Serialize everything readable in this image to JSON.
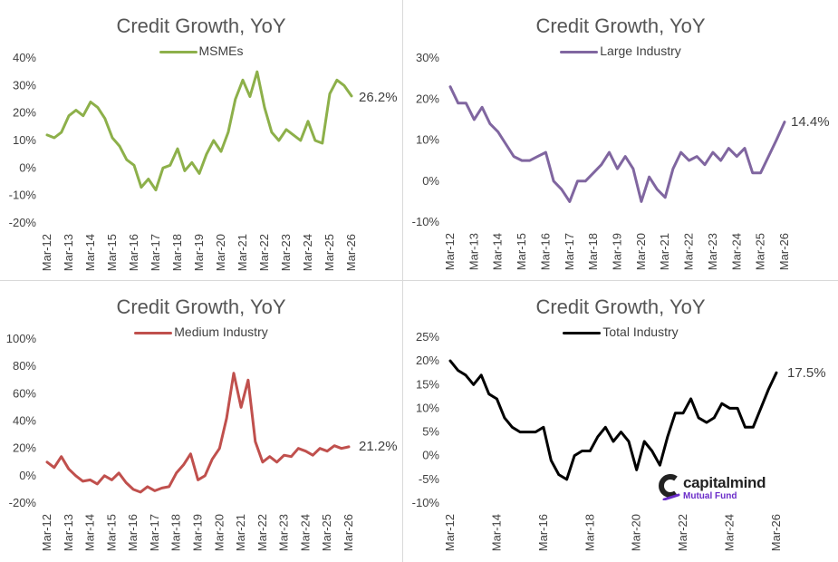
{
  "chart_data": [
    {
      "type": "line",
      "title": "Credit Growth, YoY",
      "series": [
        {
          "name": "MSMEs",
          "color": "#8db04a",
          "x": [
            2012.17,
            2012.5,
            2012.83,
            2013.17,
            2013.5,
            2013.83,
            2014.17,
            2014.5,
            2014.83,
            2015.17,
            2015.5,
            2015.83,
            2016.17,
            2016.5,
            2016.83,
            2017.17,
            2017.5,
            2017.83,
            2018.17,
            2018.5,
            2018.83,
            2019.17,
            2019.5,
            2019.83,
            2020.17,
            2020.5,
            2020.83,
            2021.17,
            2021.5,
            2021.83,
            2022.17,
            2022.5,
            2022.83,
            2023.17,
            2023.5,
            2023.83,
            2024.17,
            2024.5,
            2024.83,
            2025.17,
            2025.5,
            2025.83,
            2026.17
          ],
          "y": [
            12,
            11,
            13,
            19,
            21,
            19,
            24,
            22,
            18,
            11,
            8,
            3,
            1,
            -7,
            -4,
            -8,
            0,
            1,
            7,
            -1,
            2,
            -2,
            5,
            10,
            6,
            13,
            25,
            32,
            26,
            35,
            22,
            13,
            10,
            14,
            12,
            10,
            17,
            10,
            9,
            27,
            32,
            30,
            26.2
          ]
        }
      ],
      "xticks": [
        "Mar-12",
        "Mar-13",
        "Mar-14",
        "Mar-15",
        "Mar-16",
        "Mar-17",
        "Mar-18",
        "Mar-19",
        "Mar-20",
        "Mar-21",
        "Mar-22",
        "Mar-23",
        "Mar-24",
        "Mar-25",
        "Mar-26"
      ],
      "yticks": [
        "-20%",
        "-10%",
        "0%",
        "10%",
        "20%",
        "30%",
        "40%"
      ],
      "ylim": [
        -20,
        40
      ],
      "end_label": "26.2%",
      "legend": "top-center",
      "grid": false
    },
    {
      "type": "line",
      "title": "Credit Growth, YoY",
      "series": [
        {
          "name": "Large Industry",
          "color": "#8066a0",
          "x": [
            2012.17,
            2012.5,
            2012.83,
            2013.17,
            2013.5,
            2013.83,
            2014.17,
            2014.5,
            2014.83,
            2015.17,
            2015.5,
            2015.83,
            2016.17,
            2016.5,
            2016.83,
            2017.17,
            2017.5,
            2017.83,
            2018.17,
            2018.5,
            2018.83,
            2019.17,
            2019.5,
            2019.83,
            2020.17,
            2020.5,
            2020.83,
            2021.17,
            2021.5,
            2021.83,
            2022.17,
            2022.5,
            2022.83,
            2023.17,
            2023.5,
            2023.83,
            2024.17,
            2024.5,
            2024.83,
            2025.17,
            2025.5,
            2025.83,
            2026.17
          ],
          "y": [
            23,
            19,
            19,
            15,
            18,
            14,
            12,
            9,
            6,
            5,
            5,
            6,
            7,
            0,
            -2,
            -5,
            0,
            0,
            2,
            4,
            7,
            3,
            6,
            3,
            -5,
            1,
            -2,
            -4,
            3,
            7,
            5,
            6,
            4,
            7,
            5,
            8,
            6,
            8,
            2,
            2,
            6,
            10,
            14.4
          ]
        }
      ],
      "xticks": [
        "Mar-12",
        "Mar-13",
        "Mar-14",
        "Mar-15",
        "Mar-16",
        "Mar-17",
        "Mar-18",
        "Mar-19",
        "Mar-20",
        "Mar-21",
        "Mar-22",
        "Mar-23",
        "Mar-24",
        "Mar-25",
        "Mar-26"
      ],
      "yticks": [
        "-10%",
        "0%",
        "10%",
        "20%",
        "30%"
      ],
      "ylim": [
        -10,
        30
      ],
      "end_label": "14.4%",
      "legend": "top-center",
      "grid": false
    },
    {
      "type": "line",
      "title": "Credit Growth, YoY",
      "series": [
        {
          "name": "Medium Industry",
          "color": "#c0504d",
          "x": [
            2012.17,
            2012.5,
            2012.83,
            2013.17,
            2013.5,
            2013.83,
            2014.17,
            2014.5,
            2014.83,
            2015.17,
            2015.5,
            2015.83,
            2016.17,
            2016.5,
            2016.83,
            2017.17,
            2017.5,
            2017.83,
            2018.17,
            2018.5,
            2018.83,
            2019.17,
            2019.5,
            2019.83,
            2020.17,
            2020.5,
            2020.83,
            2021.17,
            2021.5,
            2021.83,
            2022.17,
            2022.5,
            2022.83,
            2023.17,
            2023.5,
            2023.83,
            2024.17,
            2024.5,
            2024.83,
            2025.17,
            2025.5,
            2025.83,
            2026.17
          ],
          "y": [
            10,
            6,
            14,
            5,
            0,
            -4,
            -3,
            -6,
            0,
            -3,
            2,
            -5,
            -10,
            -12,
            -8,
            -11,
            -9,
            -8,
            2,
            8,
            16,
            -3,
            0,
            12,
            20,
            42,
            75,
            50,
            70,
            25,
            10,
            14,
            10,
            15,
            14,
            20,
            18,
            15,
            20,
            18,
            22,
            20,
            21.2
          ]
        }
      ],
      "xticks": [
        "Mar-12",
        "Mar-13",
        "Mar-14",
        "Mar-15",
        "Mar-16",
        "Mar-17",
        "Mar-18",
        "Mar-19",
        "Mar-20",
        "Mar-21",
        "Mar-22",
        "Mar-23",
        "Mar-24",
        "Mar-25",
        "Mar-26"
      ],
      "yticks": [
        "-20%",
        "0%",
        "20%",
        "40%",
        "60%",
        "80%",
        "100%"
      ],
      "ylim": [
        -20,
        100
      ],
      "end_label": "21.2%",
      "legend": "top-center",
      "grid": false
    },
    {
      "type": "line",
      "title": "Credit Growth, YoY",
      "series": [
        {
          "name": "Total Industry",
          "color": "#000000",
          "x": [
            2012.17,
            2012.5,
            2012.83,
            2013.17,
            2013.5,
            2013.83,
            2014.17,
            2014.5,
            2014.83,
            2015.17,
            2015.5,
            2015.83,
            2016.17,
            2016.5,
            2016.83,
            2017.17,
            2017.5,
            2017.83,
            2018.17,
            2018.5,
            2018.83,
            2019.17,
            2019.5,
            2019.83,
            2020.17,
            2020.5,
            2020.83,
            2021.17,
            2021.5,
            2021.83,
            2022.17,
            2022.5,
            2022.83,
            2023.17,
            2023.5,
            2023.83,
            2024.17,
            2024.5,
            2024.83,
            2025.17,
            2025.5,
            2025.83,
            2026.17
          ],
          "y": [
            20,
            18,
            17,
            15,
            17,
            13,
            12,
            8,
            6,
            5,
            5,
            5,
            6,
            -1,
            -4,
            -5,
            0,
            1,
            1,
            4,
            6,
            3,
            5,
            3,
            -3,
            3,
            1,
            -2,
            4,
            9,
            9,
            12,
            8,
            7,
            8,
            11,
            10,
            10,
            6,
            6,
            10,
            14,
            17.5
          ]
        }
      ],
      "xticks": [
        "Mar-12",
        "Mar-14",
        "Mar-16",
        "Mar-18",
        "Mar-20",
        "Mar-22",
        "Mar-24",
        "Mar-26"
      ],
      "yticks": [
        "-10%",
        "-5%",
        "0%",
        "5%",
        "10%",
        "15%",
        "20%",
        "25%"
      ],
      "ylim": [
        -10,
        25
      ],
      "end_label": "17.5%",
      "legend": "top-center",
      "grid": false
    }
  ],
  "logo": {
    "name": "capitalmind",
    "sub": "Mutual Fund",
    "mark_color": "#222222",
    "sub_color": "#6a2cc9"
  }
}
